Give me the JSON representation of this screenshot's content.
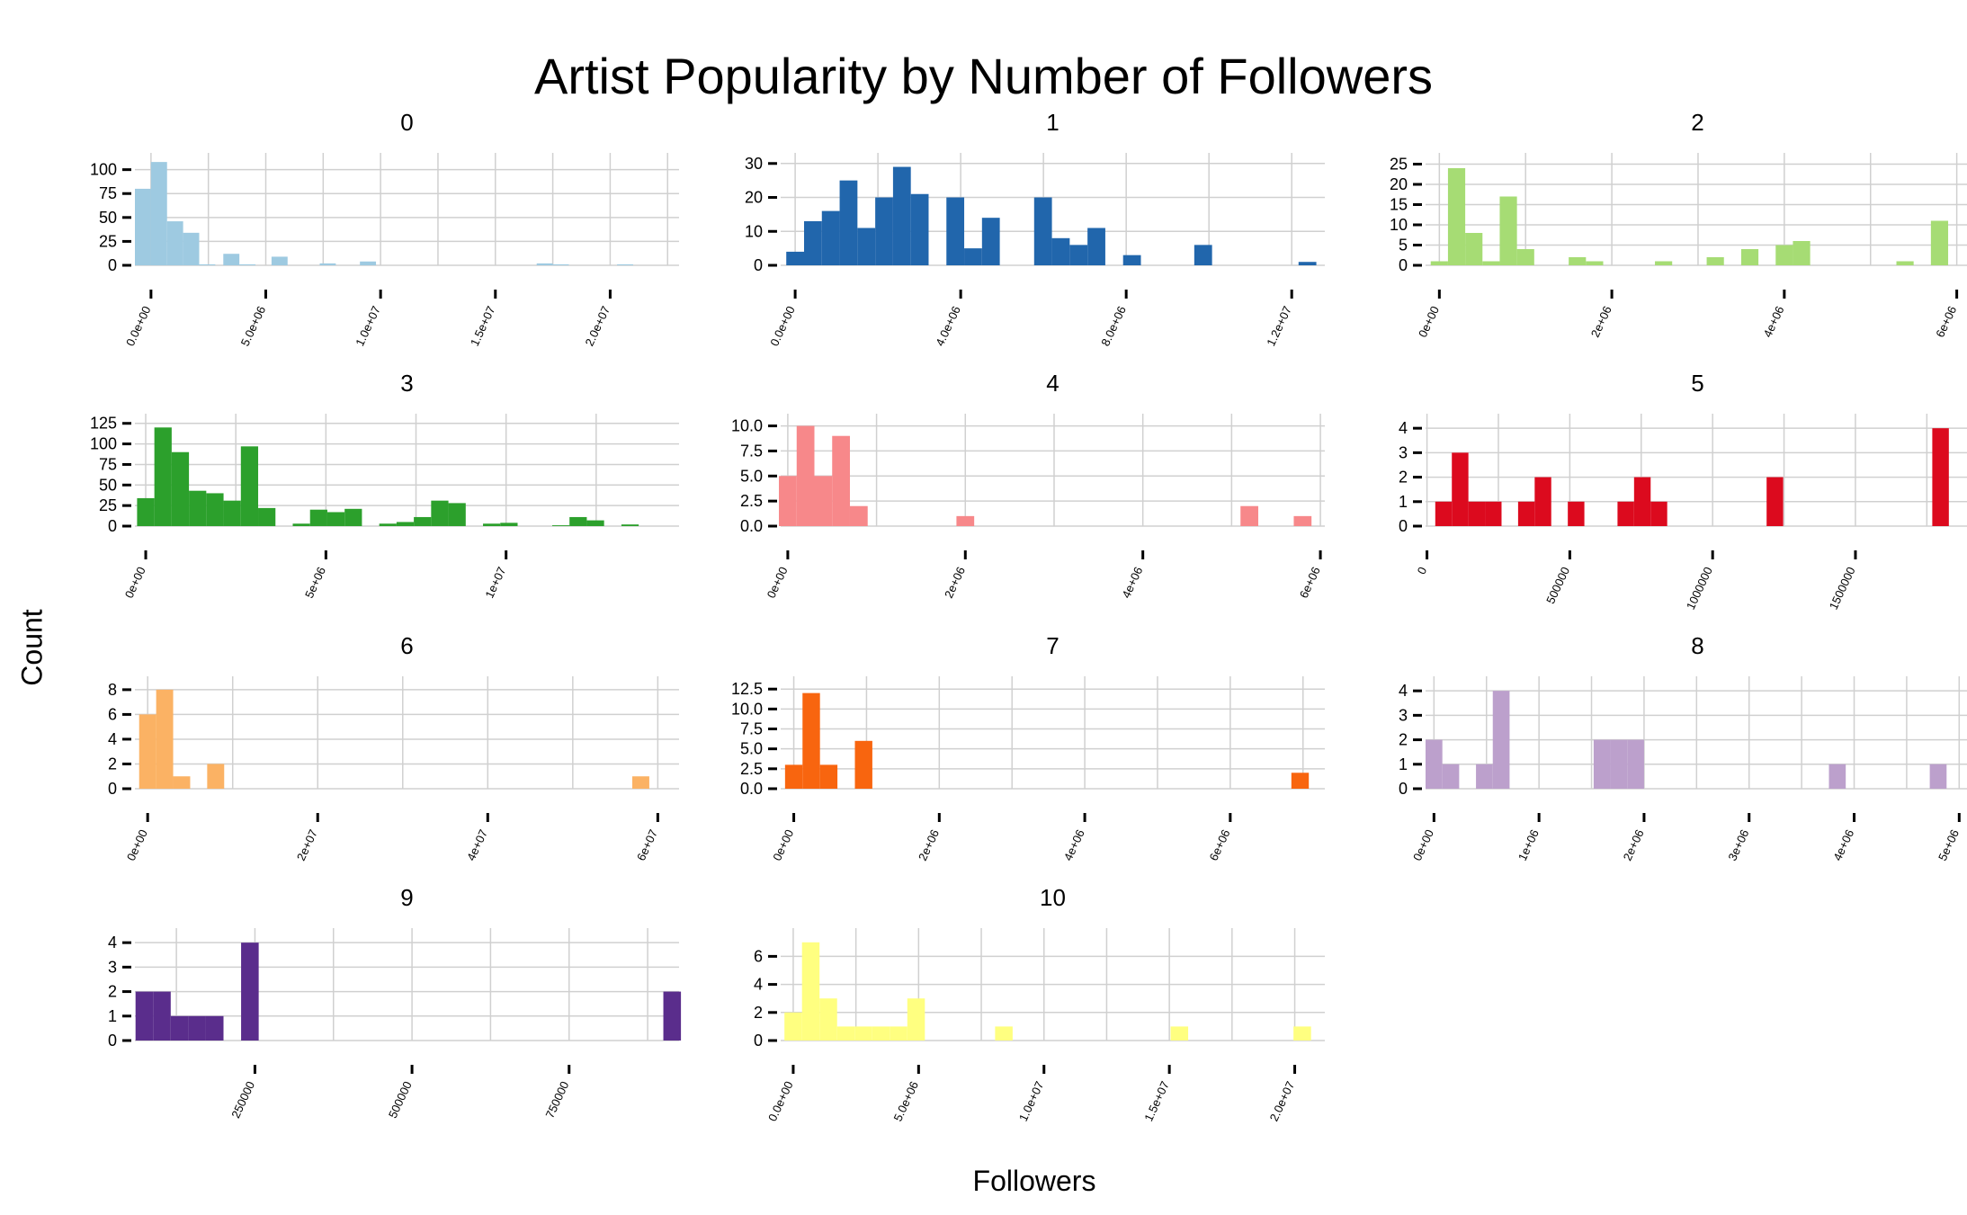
{
  "chart_data": {
    "type": "bar",
    "title": "Artist Popularity by Number of Followers",
    "xlabel": "Followers",
    "ylabel": "Count",
    "grid": true,
    "panels": [
      {
        "name": "0",
        "color": "#9ECAE1",
        "xlim": [
          -700000,
          23000000
        ],
        "ylim": [
          0,
          110
        ],
        "xticks": [
          0,
          5000000,
          10000000,
          15000000,
          20000000
        ],
        "xtick_labels": [
          "0.0e+00",
          "5.0e+06",
          "1.0e+07",
          "1.5e+07",
          "2.0e+07"
        ],
        "yticks": [
          0,
          25,
          50,
          75,
          100
        ],
        "ytick_labels": [
          "0",
          "25",
          "50",
          "75",
          "100"
        ],
        "bin_width": 700000,
        "x": [
          -350000,
          350000,
          1050000,
          1750000,
          2450000,
          3500000,
          4200000,
          5600000,
          7700000,
          9450000,
          17150000,
          17850000,
          20650000
        ],
        "values": [
          80,
          108,
          46,
          34,
          1,
          12,
          1,
          9,
          2,
          4,
          2,
          1,
          1
        ]
      },
      {
        "name": "1",
        "color": "#2166AC",
        "xlim": [
          -350000,
          12800000
        ],
        "ylim": [
          0,
          31
        ],
        "xticks": [
          0,
          4000000,
          8000000,
          12000000
        ],
        "xtick_labels": [
          "0.0e+00",
          "4.0e+06",
          "8.0e+06",
          "1.2e+07"
        ],
        "yticks": [
          0,
          10,
          20,
          30
        ],
        "ytick_labels": [
          "0",
          "10",
          "20",
          "30"
        ],
        "bin_width": 430000,
        "x": [
          0,
          430000,
          860000,
          1290000,
          1720000,
          2150000,
          2580000,
          3010000,
          3870000,
          4300000,
          4730000,
          5990000,
          6420000,
          6850000,
          7280000,
          8140000,
          9860000,
          12380000
        ],
        "values": [
          4,
          13,
          16,
          25,
          11,
          20,
          29,
          21,
          20,
          5,
          14,
          20,
          8,
          6,
          11,
          3,
          6,
          1
        ]
      },
      {
        "name": "2",
        "color": "#A6DC74",
        "xlim": [
          -160000,
          6150000
        ],
        "ylim": [
          0,
          26
        ],
        "xticks": [
          0,
          2000000,
          4000000,
          6000000
        ],
        "xtick_labels": [
          "0e+00",
          "2e+06",
          "4e+06",
          "6e+06"
        ],
        "yticks": [
          0,
          5,
          10,
          15,
          20,
          25
        ],
        "ytick_labels": [
          "0",
          "5",
          "10",
          "15",
          "20",
          "25"
        ],
        "bin_width": 200000,
        "x": [
          0,
          200000,
          400000,
          600000,
          800000,
          1000000,
          1600000,
          1800000,
          2600000,
          3200000,
          3600000,
          4000000,
          4200000,
          5400000,
          5800000
        ],
        "values": [
          1,
          24,
          8,
          1,
          17,
          4,
          2,
          1,
          1,
          2,
          4,
          5,
          6,
          1,
          11
        ]
      },
      {
        "name": "3",
        "color": "#2CA02C",
        "xlim": [
          -300000,
          14800000
        ],
        "ylim": [
          0,
          128
        ],
        "xticks": [
          0,
          5000000,
          10000000
        ],
        "xtick_labels": [
          "0e+00",
          "5e+06",
          "1e+07"
        ],
        "yticks": [
          0,
          25,
          50,
          75,
          100,
          125
        ],
        "ytick_labels": [
          "0",
          "25",
          "50",
          "75",
          "100",
          "125"
        ],
        "bin_width": 480000,
        "x": [
          0,
          480000,
          960000,
          1440000,
          1920000,
          2400000,
          2880000,
          3360000,
          4320000,
          4800000,
          5280000,
          5760000,
          6720000,
          7200000,
          7680000,
          8160000,
          8640000,
          9600000,
          10080000,
          11520000,
          12000000,
          12480000,
          13440000
        ],
        "values": [
          34,
          120,
          90,
          43,
          40,
          31,
          97,
          22,
          3,
          20,
          17,
          21,
          3,
          5,
          11,
          31,
          28,
          3,
          4,
          1,
          11,
          7,
          2
        ]
      },
      {
        "name": "4",
        "color": "#F7888A",
        "xlim": [
          -80000,
          6050000
        ],
        "ylim": [
          0,
          10.5
        ],
        "xticks": [
          0,
          2000000,
          4000000,
          6000000
        ],
        "xtick_labels": [
          "0e+00",
          "2e+06",
          "4e+06",
          "6e+06"
        ],
        "yticks": [
          0,
          2.5,
          5,
          7.5,
          10
        ],
        "ytick_labels": [
          "0.0",
          "2.5",
          "5.0",
          "7.5",
          "10.0"
        ],
        "bin_width": 200000,
        "x": [
          0,
          200000,
          400000,
          600000,
          800000,
          2000000,
          5200000,
          5800000
        ],
        "values": [
          5,
          10,
          5,
          9,
          2,
          1,
          2,
          1
        ]
      },
      {
        "name": "5",
        "color": "#DC0A1E",
        "xlim": [
          -5000,
          1900000
        ],
        "ylim": [
          0,
          4.3
        ],
        "xticks": [
          0,
          500000,
          1000000,
          1500000
        ],
        "xtick_labels": [
          "0",
          "500000",
          "1000000",
          "1500000"
        ],
        "yticks": [
          0,
          1,
          2,
          3,
          4
        ],
        "ytick_labels": [
          "0",
          "1",
          "2",
          "3",
          "4"
        ],
        "bin_width": 58000,
        "x": [
          58000,
          116000,
          174000,
          232000,
          348000,
          406000,
          522000,
          696000,
          754000,
          812000,
          1218000,
          1798000
        ],
        "values": [
          1,
          3,
          1,
          1,
          1,
          2,
          1,
          1,
          2,
          1,
          2,
          4
        ]
      },
      {
        "name": "6",
        "color": "#FBB264",
        "xlim": [
          -1500000,
          62500000
        ],
        "ylim": [
          0,
          8.5
        ],
        "xticks": [
          0,
          20000000,
          40000000,
          60000000
        ],
        "xtick_labels": [
          "0e+00",
          "2e+07",
          "4e+07",
          "6e+07"
        ],
        "yticks": [
          0,
          2,
          4,
          6,
          8
        ],
        "ytick_labels": [
          "0",
          "2",
          "4",
          "6",
          "8"
        ],
        "bin_width": 2000000,
        "x": [
          0,
          2000000,
          4000000,
          8000000,
          58000000
        ],
        "values": [
          6,
          8,
          1,
          2,
          1
        ]
      },
      {
        "name": "7",
        "color": "#F8650F",
        "xlim": [
          -180000,
          7300000
        ],
        "ylim": [
          0,
          13.2
        ],
        "xticks": [
          0,
          2000000,
          4000000,
          6000000
        ],
        "xtick_labels": [
          "0e+00",
          "2e+06",
          "4e+06",
          "6e+06"
        ],
        "yticks": [
          0,
          2.5,
          5,
          7.5,
          10,
          12.5
        ],
        "ytick_labels": [
          "0.0",
          "2.5",
          "5.0",
          "7.5",
          "10.0",
          "12.5"
        ],
        "bin_width": 240000,
        "x": [
          0,
          240000,
          480000,
          960000,
          6960000
        ],
        "values": [
          3,
          12,
          3,
          6,
          2
        ]
      },
      {
        "name": "8",
        "color": "#BCA0CC",
        "xlim": [
          -80000,
          5100000
        ],
        "ylim": [
          0,
          4.3
        ],
        "xticks": [
          0,
          1000000,
          2000000,
          3000000,
          4000000,
          5000000
        ],
        "xtick_labels": [
          "0e+00",
          "1e+06",
          "2e+06",
          "3e+06",
          "4e+06",
          "5e+06"
        ],
        "yticks": [
          0,
          1,
          2,
          3,
          4
        ],
        "ytick_labels": [
          "0",
          "1",
          "2",
          "3",
          "4"
        ],
        "bin_width": 160000,
        "x": [
          0,
          160000,
          480000,
          640000,
          1600000,
          1760000,
          1920000,
          3840000,
          4800000
        ],
        "values": [
          2,
          1,
          1,
          4,
          2,
          2,
          2,
          1,
          1
        ]
      },
      {
        "name": "9",
        "color": "#5A2D8C",
        "xlim": [
          59000,
          925000
        ],
        "ylim": [
          0,
          4.3
        ],
        "xticks": [
          250000,
          500000,
          750000
        ],
        "xtick_labels": [
          "250000",
          "500000",
          "750000"
        ],
        "yticks": [
          0,
          1,
          2,
          3,
          4
        ],
        "ytick_labels": [
          "0",
          "1",
          "2",
          "3",
          "4"
        ],
        "bin_width": 28000,
        "x": [
          74000,
          102000,
          130000,
          158000,
          186000,
          242000,
          914000
        ],
        "values": [
          2,
          2,
          1,
          1,
          1,
          4,
          2
        ]
      },
      {
        "name": "10",
        "color": "#FFFF80",
        "xlim": [
          -500000,
          21200000
        ],
        "ylim": [
          0,
          7.5
        ],
        "xticks": [
          0,
          5000000,
          10000000,
          15000000,
          20000000
        ],
        "xtick_labels": [
          "0.0e+00",
          "5.0e+06",
          "1.0e+07",
          "1.5e+07",
          "2.0e+07"
        ],
        "yticks": [
          0,
          2,
          4,
          6
        ],
        "ytick_labels": [
          "0",
          "2",
          "4",
          "6"
        ],
        "bin_width": 700000,
        "x": [
          0,
          700000,
          1400000,
          2100000,
          2800000,
          3500000,
          4200000,
          4900000,
          8400000,
          15400000,
          20300000
        ],
        "values": [
          2,
          7,
          3,
          1,
          1,
          1,
          1,
          3,
          1,
          1,
          1
        ]
      }
    ]
  }
}
